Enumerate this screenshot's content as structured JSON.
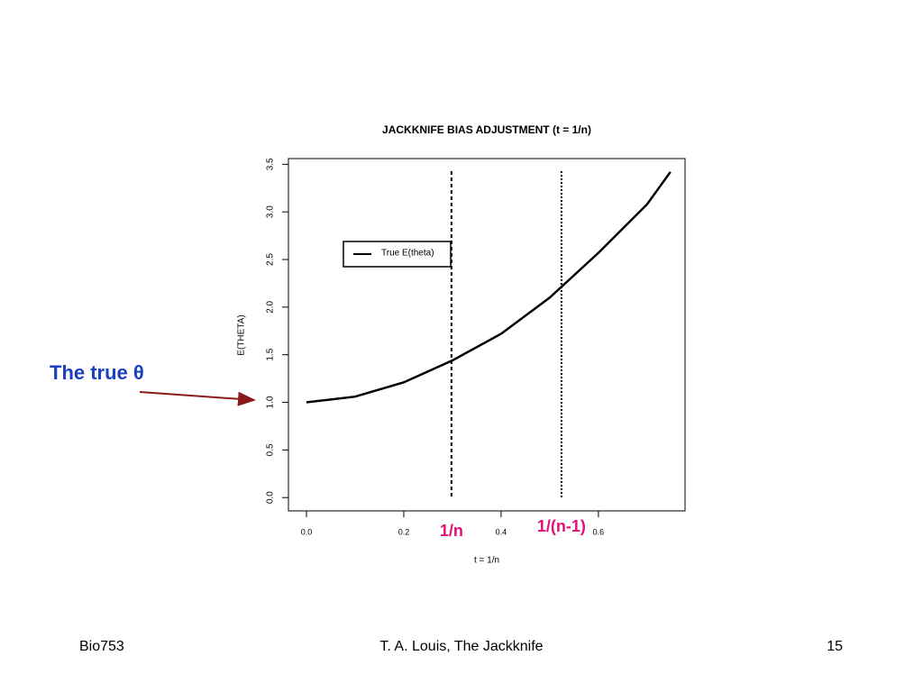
{
  "chart_data": {
    "type": "line",
    "title": "JACKKNIFE BIAS ADJUSTMENT (t = 1/n)",
    "xlabel": "t = 1/n",
    "ylabel": "E(THETA)",
    "x": [
      0,
      0.1,
      0.2,
      0.3,
      0.4,
      0.5,
      0.6,
      0.7,
      0.748
    ],
    "series": [
      {
        "name": "True E(theta)",
        "color": "#000000",
        "values": [
          1.0,
          1.06,
          1.21,
          1.44,
          1.72,
          2.1,
          2.57,
          3.08,
          3.42
        ]
      }
    ],
    "xlim": [
      -0.037,
      0.778
    ],
    "ylim": [
      -0.14,
      3.56
    ],
    "xticks": [
      {
        "value": 0,
        "label": "0.0"
      },
      0.2,
      0.4,
      0.6
    ],
    "yticks": [
      {
        "value": 0,
        "label": "0.0"
      },
      0.5,
      {
        "value": 1,
        "label": "1.0"
      },
      1.5,
      {
        "value": 2,
        "label": "2.0"
      },
      2.5,
      {
        "value": 3,
        "label": "3.0"
      },
      3.5
    ],
    "vlines": [
      {
        "x": 0.298,
        "label": "1/n",
        "style": "dashed"
      },
      {
        "x": 0.524,
        "label": "1/(n-1)",
        "style": "dotted"
      }
    ],
    "annotation": "The true θ",
    "legend": "upper left"
  },
  "footer": {
    "left": "Bio753",
    "center": "T. A. Louis, The Jackknife",
    "right": "15"
  }
}
